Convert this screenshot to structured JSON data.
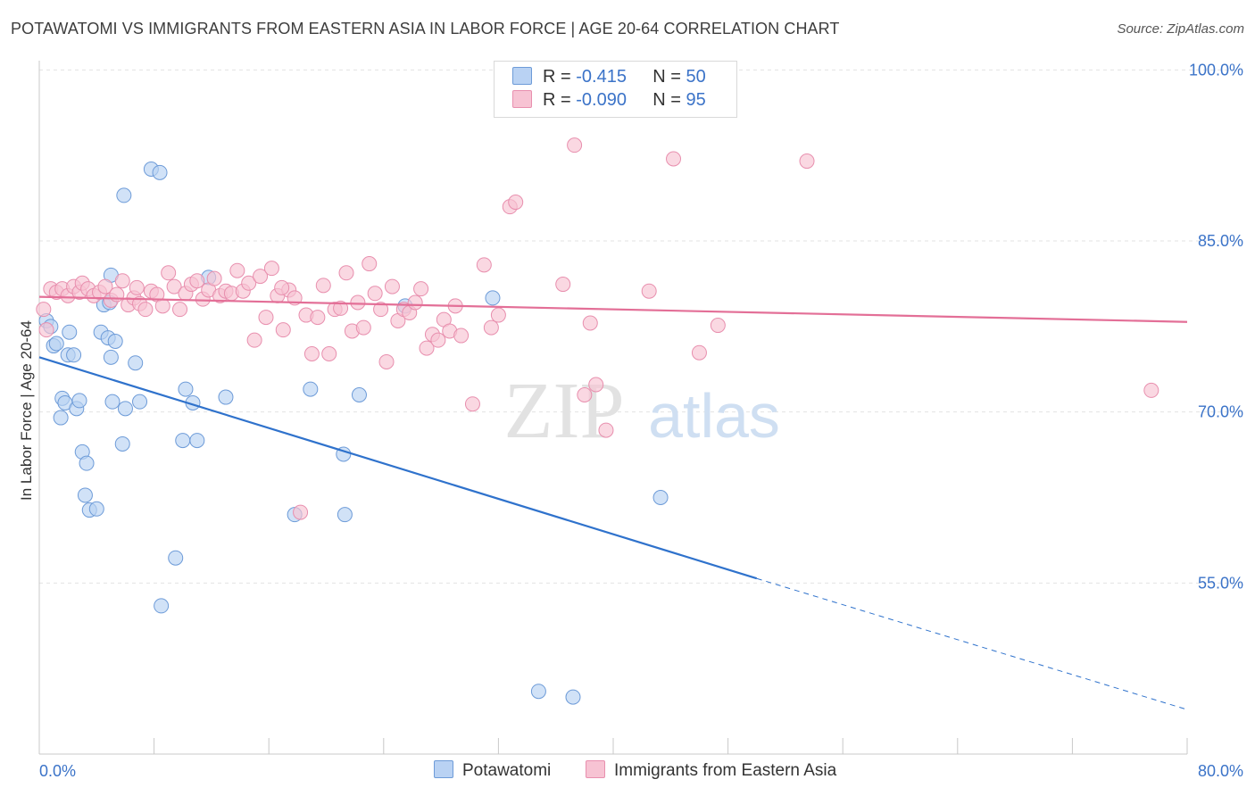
{
  "title": "POTAWATOMI VS IMMIGRANTS FROM EASTERN ASIA IN LABOR FORCE | AGE 20-64 CORRELATION CHART",
  "source": "Source: ZipAtlas.com",
  "watermark": {
    "zip": "ZIP",
    "atlas": "atlas"
  },
  "colors": {
    "blue_fill": "#b9d2f3",
    "blue_stroke": "#6d9bd8",
    "blue_line": "#2f72cc",
    "pink_fill": "#f7c3d3",
    "pink_stroke": "#e88fae",
    "pink_line": "#e36f97",
    "tick_label": "#3b73c8",
    "grid": "#e3e3e3"
  },
  "legend": {
    "rows": [
      {
        "r_label": "R = ",
        "r_value": "-0.415",
        "n_label": "N = ",
        "n_value": "50"
      },
      {
        "r_label": "R = ",
        "r_value": "-0.090",
        "n_label": "N = ",
        "n_value": "95"
      }
    ]
  },
  "chart_data": {
    "type": "scatter",
    "ylabel": "In Labor Force | Age 20-64",
    "xlim": [
      0,
      80
    ],
    "ylim": [
      40,
      103
    ],
    "x_tick_labels": [
      "0.0%",
      "80.0%"
    ],
    "y_ticks": [
      55,
      70,
      85,
      100
    ],
    "y_tick_labels": [
      "55.0%",
      "70.0%",
      "85.0%",
      "100.0%"
    ],
    "grid": true,
    "series": [
      {
        "name": "Potawatomi",
        "color": "blue",
        "trend": {
          "x0": 0,
          "y0": 74.8,
          "x1": 50,
          "y1": 55.4,
          "dashed_to_x": 80,
          "dashed_to_y": 43.9
        },
        "points": [
          [
            0.5,
            78.0
          ],
          [
            0.8,
            77.5
          ],
          [
            1.0,
            75.8
          ],
          [
            1.2,
            76.0
          ],
          [
            1.5,
            69.5
          ],
          [
            1.6,
            71.2
          ],
          [
            1.8,
            70.8
          ],
          [
            2.0,
            75.0
          ],
          [
            2.1,
            77.0
          ],
          [
            2.4,
            75.0
          ],
          [
            2.6,
            70.3
          ],
          [
            2.8,
            71.0
          ],
          [
            3.0,
            66.5
          ],
          [
            3.2,
            62.7
          ],
          [
            3.3,
            65.5
          ],
          [
            3.5,
            61.4
          ],
          [
            4.0,
            61.5
          ],
          [
            5.0,
            82.0
          ],
          [
            4.3,
            77.0
          ],
          [
            4.5,
            79.4
          ],
          [
            4.8,
            76.5
          ],
          [
            5.0,
            74.8
          ],
          [
            5.1,
            70.9
          ],
          [
            5.3,
            76.2
          ],
          [
            5.8,
            67.2
          ],
          [
            5.9,
            89.0
          ],
          [
            6.0,
            70.3
          ],
          [
            6.7,
            74.3
          ],
          [
            7.0,
            70.9
          ],
          [
            7.8,
            91.3
          ],
          [
            8.4,
            91.0
          ],
          [
            8.5,
            53.0
          ],
          [
            9.5,
            57.2
          ],
          [
            10.0,
            67.5
          ],
          [
            10.2,
            72.0
          ],
          [
            10.7,
            70.8
          ],
          [
            11.0,
            67.5
          ],
          [
            11.8,
            81.8
          ],
          [
            13.0,
            71.3
          ],
          [
            17.8,
            61.0
          ],
          [
            18.9,
            72.0
          ],
          [
            21.2,
            66.3
          ],
          [
            21.3,
            61.0
          ],
          [
            22.3,
            71.5
          ],
          [
            25.5,
            79.3
          ],
          [
            31.6,
            80.0
          ],
          [
            43.3,
            62.5
          ],
          [
            34.8,
            45.5
          ],
          [
            37.2,
            45.0
          ],
          [
            4.9,
            79.6
          ]
        ]
      },
      {
        "name": "Immigrants from Eastern Asia",
        "color": "pink",
        "trend": {
          "x0": 0,
          "y0": 80.1,
          "x1": 80,
          "y1": 77.9
        },
        "points": [
          [
            0.3,
            79.0
          ],
          [
            0.8,
            80.8
          ],
          [
            1.2,
            80.5
          ],
          [
            1.6,
            80.8
          ],
          [
            2.0,
            80.2
          ],
          [
            2.4,
            81.0
          ],
          [
            2.8,
            80.5
          ],
          [
            3.0,
            81.3
          ],
          [
            3.4,
            80.8
          ],
          [
            3.8,
            80.2
          ],
          [
            4.2,
            80.5
          ],
          [
            4.6,
            81.0
          ],
          [
            5.0,
            79.8
          ],
          [
            5.4,
            80.3
          ],
          [
            5.8,
            81.5
          ],
          [
            6.2,
            79.4
          ],
          [
            6.6,
            80.0
          ],
          [
            7.0,
            79.5
          ],
          [
            7.4,
            79.0
          ],
          [
            7.8,
            80.6
          ],
          [
            8.2,
            80.3
          ],
          [
            8.6,
            79.3
          ],
          [
            9.0,
            82.2
          ],
          [
            9.4,
            81.0
          ],
          [
            9.8,
            79.0
          ],
          [
            10.2,
            80.4
          ],
          [
            10.6,
            81.2
          ],
          [
            11.0,
            81.5
          ],
          [
            11.4,
            79.9
          ],
          [
            11.8,
            80.7
          ],
          [
            12.2,
            81.7
          ],
          [
            12.6,
            80.2
          ],
          [
            13.0,
            80.6
          ],
          [
            13.4,
            80.4
          ],
          [
            13.8,
            82.4
          ],
          [
            14.2,
            80.6
          ],
          [
            14.6,
            81.3
          ],
          [
            15.0,
            76.3
          ],
          [
            15.4,
            81.9
          ],
          [
            15.8,
            78.3
          ],
          [
            16.2,
            82.6
          ],
          [
            16.6,
            80.2
          ],
          [
            17.0,
            77.2
          ],
          [
            17.4,
            80.7
          ],
          [
            17.8,
            80.0
          ],
          [
            18.2,
            61.2
          ],
          [
            18.6,
            78.5
          ],
          [
            19.0,
            75.1
          ],
          [
            19.4,
            78.3
          ],
          [
            19.8,
            81.1
          ],
          [
            20.2,
            75.1
          ],
          [
            20.6,
            79.0
          ],
          [
            21.0,
            79.1
          ],
          [
            21.4,
            82.2
          ],
          [
            21.8,
            77.1
          ],
          [
            22.2,
            79.6
          ],
          [
            22.6,
            77.4
          ],
          [
            23.0,
            83.0
          ],
          [
            23.4,
            80.4
          ],
          [
            23.8,
            79.0
          ],
          [
            24.2,
            74.4
          ],
          [
            24.6,
            81.0
          ],
          [
            25.0,
            78.0
          ],
          [
            25.4,
            79.0
          ],
          [
            25.8,
            78.7
          ],
          [
            26.2,
            79.6
          ],
          [
            26.6,
            80.8
          ],
          [
            27.0,
            75.6
          ],
          [
            27.4,
            76.8
          ],
          [
            27.8,
            76.3
          ],
          [
            28.2,
            78.1
          ],
          [
            28.6,
            77.1
          ],
          [
            29.0,
            79.3
          ],
          [
            29.4,
            76.7
          ],
          [
            30.2,
            70.7
          ],
          [
            31.0,
            82.9
          ],
          [
            31.5,
            77.4
          ],
          [
            32.0,
            78.5
          ],
          [
            32.8,
            88.0
          ],
          [
            33.2,
            88.4
          ],
          [
            36.5,
            81.2
          ],
          [
            37.3,
            93.4
          ],
          [
            38.0,
            71.5
          ],
          [
            38.4,
            77.8
          ],
          [
            38.8,
            72.4
          ],
          [
            39.5,
            68.4
          ],
          [
            42.5,
            80.6
          ],
          [
            44.2,
            92.2
          ],
          [
            46.0,
            75.2
          ],
          [
            47.3,
            77.6
          ],
          [
            53.5,
            92.0
          ],
          [
            77.5,
            71.9
          ],
          [
            0.5,
            77.2
          ],
          [
            6.8,
            80.9
          ],
          [
            16.9,
            80.9
          ]
        ]
      }
    ]
  }
}
